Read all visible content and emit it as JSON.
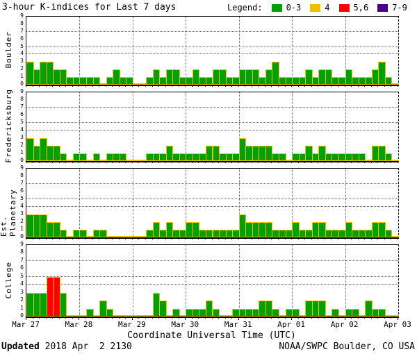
{
  "title": "3-hour K-indices for Last 7 days",
  "legend": {
    "label": "Legend:",
    "items": [
      {
        "label": "0-3",
        "color": "#00A000"
      },
      {
        "label": "4",
        "color": "#F0C000"
      },
      {
        "label": "5,6",
        "color": "#FF0000"
      },
      {
        "label": "7-9",
        "color": "#4B0082"
      }
    ]
  },
  "xlabel": "Coordinate Universal Time (UTC)",
  "footer": {
    "updated_label": "Updated",
    "updated_value": " 2018 Apr  2 2130",
    "credit": "NOAA/SWPC Boulder, CO USA"
  },
  "chart_data": {
    "type": "bar",
    "description": "3-hour K-indices per station, 8 bars per day over 7 days (Mar 27 - Apr 02), last interval partial",
    "x_tick_labels": [
      "Mar 27",
      "Mar 28",
      "Mar 29",
      "Mar 30",
      "Mar 31",
      "Apr 01",
      "Apr 02",
      "Apr 03"
    ],
    "y_ticks": [
      0,
      1,
      2,
      3,
      4,
      5,
      6,
      7,
      8,
      9
    ],
    "ylim": [
      0,
      9
    ],
    "dotted_y_gridlines": [
      4,
      5,
      7
    ],
    "bars_per_day": 8,
    "days": 7,
    "colors": {
      "g": "#00A000",
      "y": "#F0C000",
      "r": "#FF0000",
      "p": "#4B0082"
    },
    "bar_outline": "#EFC000",
    "series": [
      {
        "name": "Boulder",
        "values": [
          3,
          2,
          3,
          3,
          2,
          2,
          1,
          1,
          1,
          1,
          1,
          0,
          1,
          2,
          1,
          1,
          0,
          0,
          1,
          2,
          1,
          2,
          2,
          1,
          1,
          2,
          1,
          1,
          2,
          2,
          1,
          1,
          2,
          2,
          2,
          1,
          2,
          3,
          1,
          1,
          1,
          1,
          2,
          1,
          2,
          2,
          1,
          1,
          2,
          1,
          1,
          1,
          2,
          3,
          1,
          0
        ]
      },
      {
        "name": "Fredericksburg",
        "values": [
          3,
          2,
          3,
          2,
          2,
          1,
          0,
          1,
          1,
          0,
          1,
          0,
          1,
          1,
          1,
          0,
          0,
          0,
          1,
          1,
          1,
          2,
          1,
          1,
          1,
          1,
          1,
          2,
          2,
          1,
          1,
          1,
          3,
          2,
          2,
          2,
          2,
          1,
          1,
          0,
          1,
          1,
          2,
          1,
          2,
          1,
          1,
          1,
          1,
          1,
          1,
          0,
          2,
          2,
          1,
          0
        ]
      },
      {
        "name": "Est. Planetary",
        "values": [
          3,
          3,
          3,
          2,
          2,
          1,
          0,
          1,
          1,
          0,
          1,
          1,
          0,
          0,
          0,
          0,
          0,
          0,
          1,
          2,
          1,
          2,
          1,
          1,
          2,
          2,
          1,
          1,
          1,
          1,
          1,
          1,
          3,
          2,
          2,
          2,
          2,
          1,
          1,
          1,
          2,
          1,
          1,
          2,
          2,
          1,
          1,
          1,
          2,
          1,
          1,
          1,
          2,
          2,
          1,
          0
        ]
      },
      {
        "name": "College",
        "values": [
          3,
          3,
          3,
          5,
          5,
          3,
          0,
          0,
          0,
          1,
          0,
          2,
          1,
          0,
          0,
          0,
          0,
          0,
          0,
          3,
          2,
          0,
          1,
          0,
          1,
          1,
          1,
          2,
          1,
          0,
          0,
          1,
          1,
          1,
          1,
          2,
          2,
          1,
          0,
          1,
          1,
          0,
          2,
          2,
          2,
          0,
          1,
          0,
          1,
          1,
          0,
          2,
          1,
          1,
          0,
          0
        ]
      }
    ]
  }
}
